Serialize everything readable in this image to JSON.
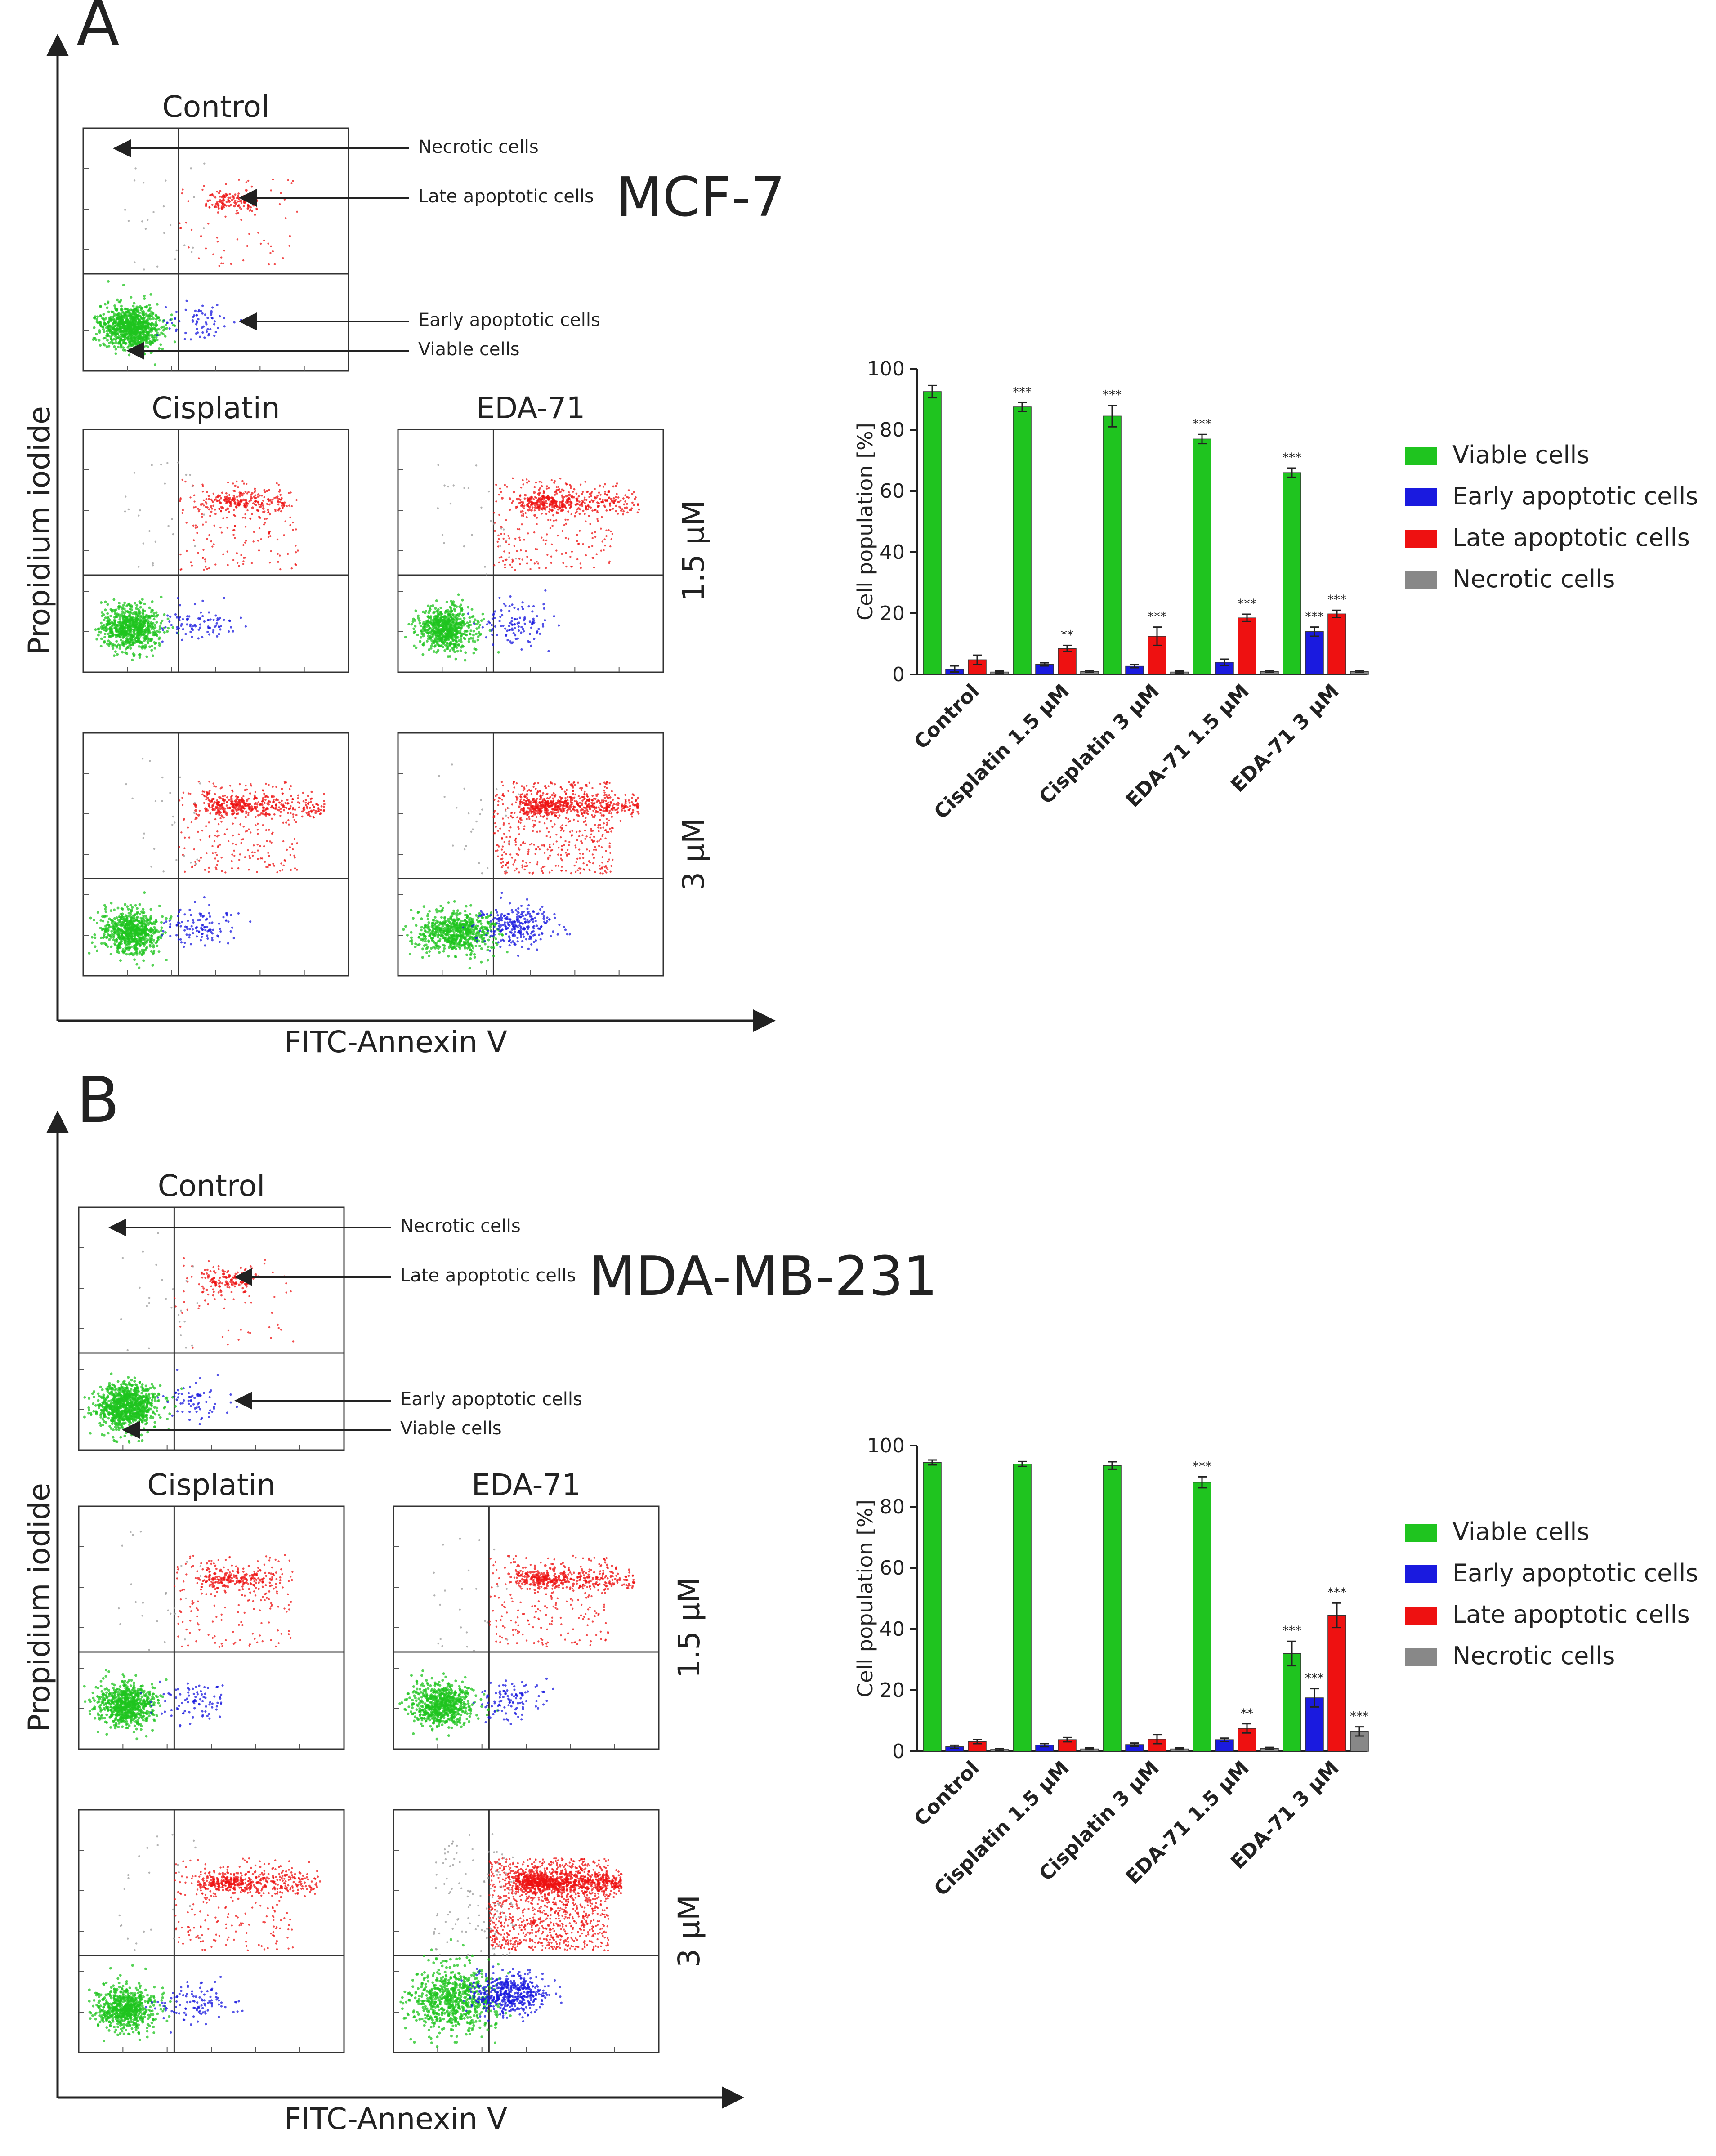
{
  "figure": {
    "panels": [
      {
        "letter": "A",
        "cell_line": "MCF-7",
        "plot_titles": {
          "control": "Control",
          "cisplatin": "Cisplatin",
          "eda": "EDA-71"
        },
        "row_labels": [
          "1.5 µM",
          "3 µM"
        ],
        "axis_y_label": "Propidium iodide",
        "axis_x_label": "FITC-Annexin V",
        "annotations": [
          "Necrotic cells",
          "Late apoptotic cells",
          "Early apoptotic cells",
          "Viable cells"
        ]
      },
      {
        "letter": "B",
        "cell_line": "MDA-MB-231",
        "plot_titles": {
          "control": "Control",
          "cisplatin": "Cisplatin",
          "eda": "EDA-71"
        },
        "row_labels": [
          "1.5 µM",
          "3 µM"
        ],
        "axis_y_label": "Propidium iodide",
        "axis_x_label": "FITC-Annexin V",
        "annotations": [
          "Necrotic cells",
          "Late apoptotic cells",
          "Early apoptotic cells",
          "Viable cells"
        ]
      }
    ]
  },
  "colors": {
    "viable": "#1fc41f",
    "early": "#1a1adf",
    "late": "#ee1111",
    "necrotic": "#888888",
    "axis": "#222222"
  },
  "chart_data": [
    {
      "type": "bar",
      "panel": "A",
      "title": "",
      "xlabel": "",
      "ylabel": "Cell population [%]",
      "ylim": [
        0,
        100
      ],
      "yticks": [
        "0",
        "20",
        "40",
        "60",
        "80",
        "100"
      ],
      "categories": [
        "Control",
        "Cisplatin 1.5 µM",
        "Cisplatin 3 µM",
        "EDA-71 1.5 µM",
        "EDA-71 3 µM"
      ],
      "legend": [
        "Viable cells",
        "Early apoptotic cells",
        "Late apoptotic cells",
        "Necrotic cells"
      ],
      "series": [
        {
          "name": "Viable cells",
          "values": [
            92.5,
            87.5,
            84.5,
            77,
            66
          ],
          "errors": [
            2,
            1.5,
            3.5,
            1.5,
            1.5
          ],
          "sig": [
            "",
            "***",
            "***",
            "***",
            "***"
          ]
        },
        {
          "name": "Early apoptotic cells",
          "values": [
            1.8,
            3.3,
            2.7,
            4,
            14
          ],
          "errors": [
            1,
            0.5,
            0.5,
            1,
            1.5
          ],
          "sig": [
            "",
            "",
            "",
            "",
            "***"
          ]
        },
        {
          "name": "Late apoptotic cells",
          "values": [
            4.8,
            8.5,
            12.5,
            18.5,
            19.8
          ],
          "errors": [
            1.5,
            1,
            3,
            1.2,
            1.2
          ],
          "sig": [
            "",
            "**",
            "***",
            "***",
            "***"
          ]
        },
        {
          "name": "Necrotic cells",
          "values": [
            0.8,
            1,
            0.8,
            1,
            1
          ],
          "errors": [
            0.3,
            0.3,
            0.3,
            0.3,
            0.3
          ],
          "sig": [
            "",
            "",
            "",
            "",
            ""
          ]
        }
      ]
    },
    {
      "type": "bar",
      "panel": "B",
      "title": "",
      "xlabel": "",
      "ylabel": "Cell population [%]",
      "ylim": [
        0,
        100
      ],
      "yticks": [
        "0",
        "20",
        "40",
        "60",
        "80",
        "100"
      ],
      "categories": [
        "Control",
        "Cisplatin 1.5 µM",
        "Cisplatin 3 µM",
        "EDA-71 1.5 µM",
        "EDA-71 3 µM"
      ],
      "legend": [
        "Viable cells",
        "Early apoptotic cells",
        "Late apoptotic cells",
        "Necrotic cells"
      ],
      "series": [
        {
          "name": "Viable cells",
          "values": [
            94.5,
            94,
            93.5,
            88,
            32
          ],
          "errors": [
            0.8,
            0.8,
            1.2,
            1.8,
            4
          ],
          "sig": [
            "",
            "",
            "",
            "***",
            "***"
          ]
        },
        {
          "name": "Early apoptotic cells",
          "values": [
            1.5,
            2,
            2.2,
            3.8,
            17.5
          ],
          "errors": [
            0.5,
            0.5,
            0.5,
            0.5,
            3
          ],
          "sig": [
            "",
            "",
            "",
            "",
            "***"
          ]
        },
        {
          "name": "Late apoptotic cells",
          "values": [
            3.2,
            3.8,
            4,
            7.5,
            44.5
          ],
          "errors": [
            0.7,
            0.7,
            1.5,
            1.5,
            4
          ],
          "sig": [
            "",
            "",
            "",
            "**",
            "***"
          ]
        },
        {
          "name": "Necrotic cells",
          "values": [
            0.6,
            0.8,
            0.8,
            1,
            6.5
          ],
          "errors": [
            0.3,
            0.3,
            0.3,
            0.3,
            1.5
          ],
          "sig": [
            "",
            "",
            "",
            "",
            "***"
          ]
        }
      ]
    }
  ]
}
